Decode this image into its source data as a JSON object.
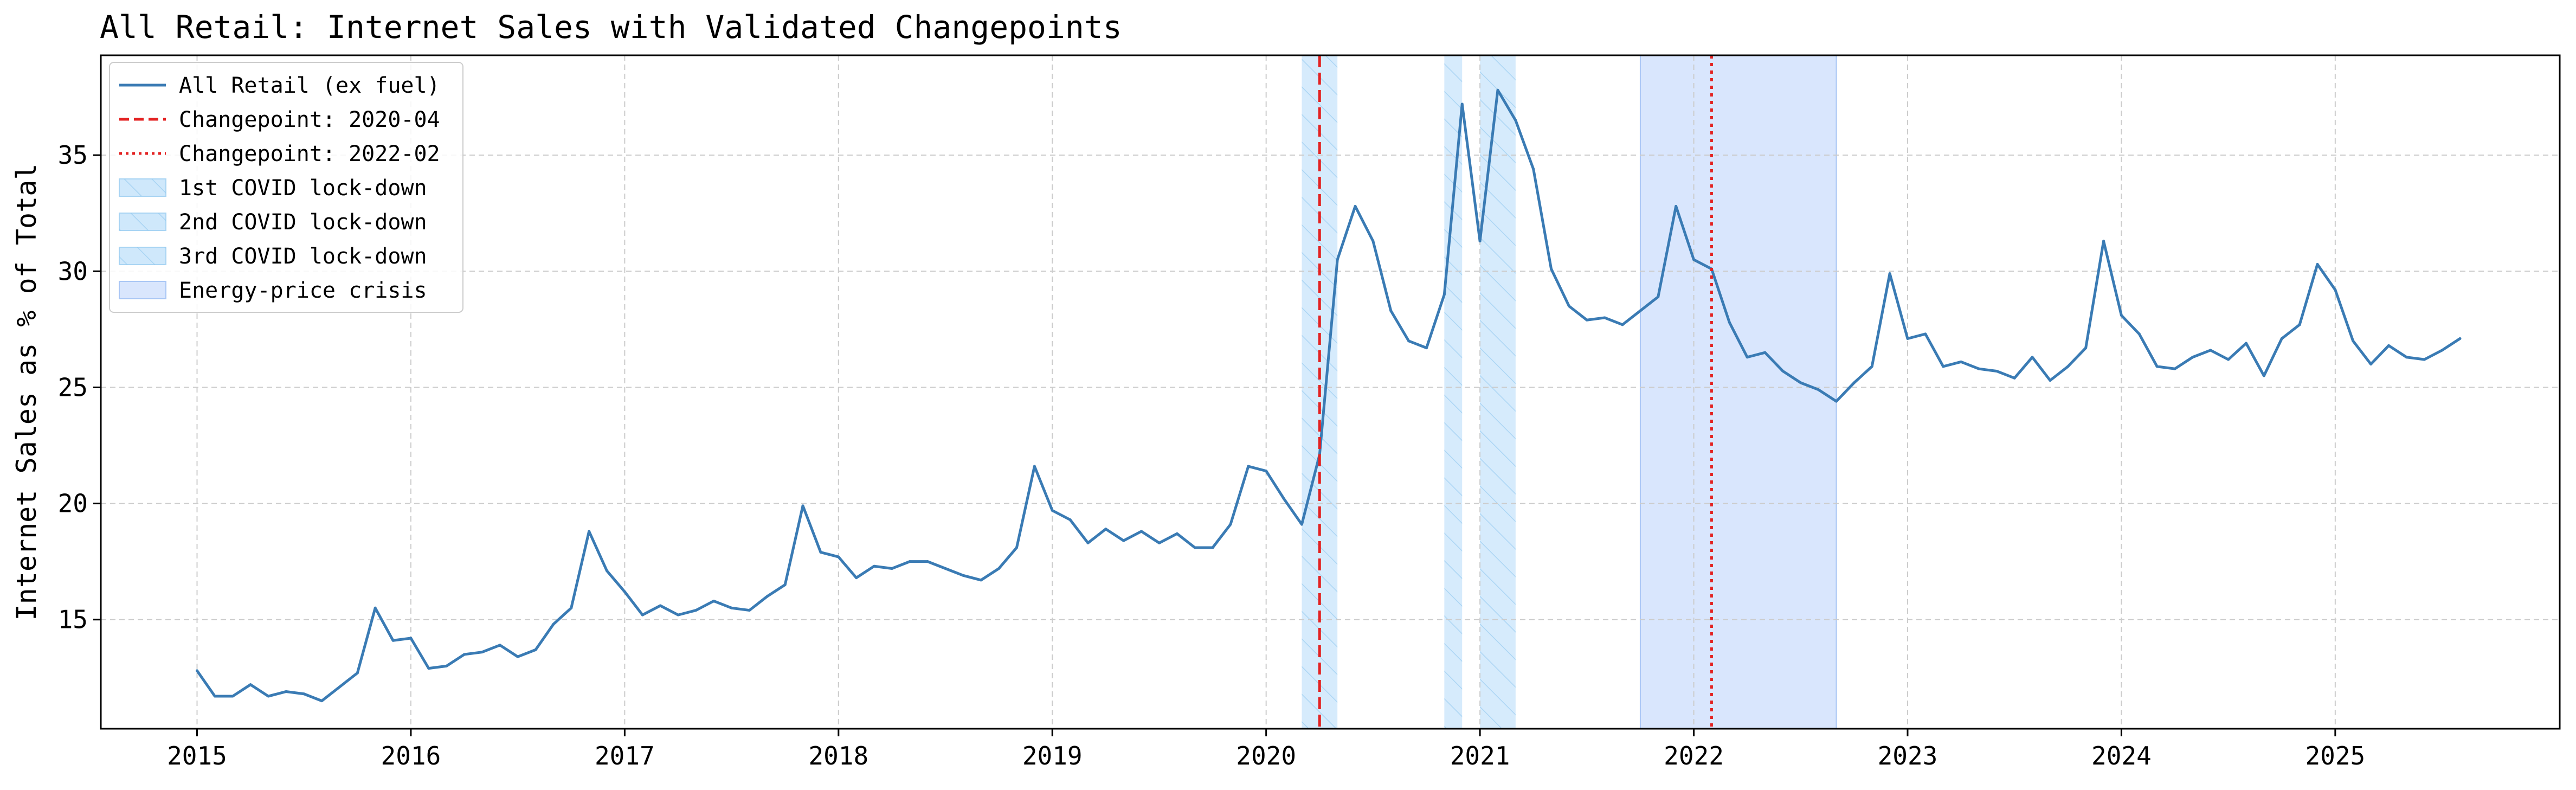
{
  "chart_data": {
    "type": "line",
    "title": "All Retail: Internet Sales with Validated Changepoints",
    "xlabel": "",
    "ylabel": "Internet Sales as % of Total",
    "xlim": [
      2014.55,
      2026.05
    ],
    "ylim": [
      10.3,
      39.3
    ],
    "x_ticks": [
      2015,
      2016,
      2017,
      2018,
      2019,
      2020,
      2021,
      2022,
      2023,
      2024,
      2025
    ],
    "x_tick_labels": [
      "2015",
      "2016",
      "2017",
      "2018",
      "2019",
      "2020",
      "2021",
      "2022",
      "2023",
      "2024",
      "2025"
    ],
    "y_ticks": [
      15,
      20,
      25,
      30,
      35
    ],
    "y_tick_labels": [
      "15",
      "20",
      "25",
      "30",
      "35"
    ],
    "grid": true,
    "legend_position": "top-left",
    "colors": {
      "series": "#3a7bb4",
      "changepoint": "#e32222",
      "covid_band": "#cfe8fb",
      "covid_hatch": "#8ec6ee",
      "energy_band": "#d9e6fd",
      "grid": "#cccccc"
    },
    "series": [
      {
        "name": "All Retail (ex fuel)",
        "start": "2015-01",
        "values": [
          12.8,
          11.7,
          11.7,
          12.2,
          11.7,
          11.9,
          11.8,
          11.5,
          12.1,
          12.7,
          15.5,
          14.1,
          14.2,
          12.9,
          13.0,
          13.5,
          13.6,
          13.9,
          13.4,
          13.7,
          14.8,
          15.5,
          18.8,
          17.1,
          16.2,
          15.2,
          15.6,
          15.2,
          15.4,
          15.8,
          15.5,
          15.4,
          16.0,
          16.5,
          19.9,
          17.9,
          17.7,
          16.8,
          17.3,
          17.2,
          17.5,
          17.5,
          17.2,
          16.9,
          16.7,
          17.2,
          18.1,
          21.6,
          19.7,
          19.3,
          18.3,
          18.9,
          18.4,
          18.8,
          18.3,
          18.7,
          18.1,
          18.1,
          19.1,
          21.6,
          21.4,
          20.2,
          19.1,
          22.1,
          30.5,
          32.8,
          31.3,
          28.3,
          27.0,
          26.7,
          29.0,
          37.2,
          31.3,
          37.8,
          36.5,
          34.4,
          30.1,
          28.5,
          27.9,
          28.0,
          27.7,
          28.3,
          28.9,
          32.8,
          30.5,
          30.1,
          27.8,
          26.3,
          26.5,
          25.7,
          25.2,
          24.9,
          24.4,
          25.2,
          25.9,
          29.9,
          27.1,
          27.3,
          25.9,
          26.1,
          25.8,
          25.7,
          25.4,
          26.3,
          25.3,
          25.9,
          26.7,
          31.3,
          28.1,
          27.3,
          25.9,
          25.8,
          26.3,
          26.6,
          26.2,
          26.9,
          25.5,
          27.1,
          27.7,
          30.3,
          29.2,
          27.0,
          26.0,
          26.8,
          26.3,
          26.2,
          26.6,
          27.1
        ]
      }
    ],
    "changepoints": [
      {
        "label": "Changepoint: 2020-04",
        "date": "2020-04",
        "style": "dashed"
      },
      {
        "label": "Changepoint: 2022-02",
        "date": "2022-02",
        "style": "dotted"
      }
    ],
    "shaded_periods": [
      {
        "label": "1st COVID lock-down",
        "start": "2020-03",
        "end": "2020-05",
        "style": "hatched"
      },
      {
        "label": "2nd COVID lock-down",
        "start": "2020-11",
        "end": "2020-12",
        "style": "hatched"
      },
      {
        "label": "3rd COVID lock-down",
        "start": "2021-01",
        "end": "2021-03",
        "style": "hatched"
      },
      {
        "label": "Energy-price crisis",
        "start": "2021-10",
        "end": "2022-09",
        "style": "solid"
      }
    ],
    "legend": [
      {
        "label": "All Retail (ex fuel)",
        "kind": "line"
      },
      {
        "label": "Changepoint: 2020-04",
        "kind": "dashed"
      },
      {
        "label": "Changepoint: 2022-02",
        "kind": "dotted"
      },
      {
        "label": "1st COVID lock-down",
        "kind": "hatched"
      },
      {
        "label": "2nd COVID lock-down",
        "kind": "hatched"
      },
      {
        "label": "3rd COVID lock-down",
        "kind": "hatched"
      },
      {
        "label": "Energy-price crisis",
        "kind": "solid"
      }
    ]
  }
}
